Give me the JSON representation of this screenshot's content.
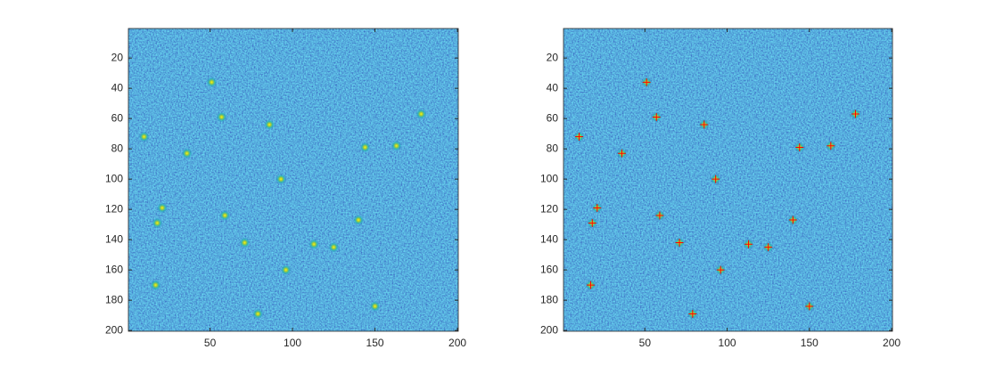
{
  "chart_data": [
    {
      "type": "image",
      "xlim": [
        0.5,
        200.5
      ],
      "ylim": [
        0.5,
        200.5
      ],
      "y_reversed": true,
      "xticks": [
        50,
        100,
        150,
        200
      ],
      "yticks": [
        20,
        40,
        60,
        80,
        100,
        120,
        140,
        160,
        180,
        200
      ],
      "x": [
        51,
        57,
        86,
        178,
        10,
        36,
        144,
        163,
        93,
        21,
        59,
        18,
        140,
        71,
        113,
        125,
        96,
        17,
        79,
        150
      ],
      "y": [
        36,
        59,
        64,
        57,
        72,
        83,
        79,
        78,
        100,
        119,
        124,
        129,
        127,
        142,
        143,
        145,
        160,
        170,
        189,
        184
      ]
    },
    {
      "type": "image",
      "xlim": [
        0.5,
        200.5
      ],
      "ylim": [
        0.5,
        200.5
      ],
      "y_reversed": true,
      "xticks": [
        50,
        100,
        150,
        200
      ],
      "yticks": [
        20,
        40,
        60,
        80,
        100,
        120,
        140,
        160,
        180,
        200
      ],
      "x": [
        51,
        57,
        86,
        178,
        10,
        36,
        144,
        163,
        93,
        21,
        59,
        18,
        140,
        71,
        113,
        125,
        96,
        17,
        79,
        150
      ],
      "y": [
        36,
        59,
        64,
        57,
        72,
        83,
        79,
        78,
        100,
        119,
        124,
        129,
        127,
        142,
        143,
        145,
        160,
        170,
        189,
        184
      ],
      "markers": "+",
      "marker_color": "#ff0000"
    }
  ]
}
